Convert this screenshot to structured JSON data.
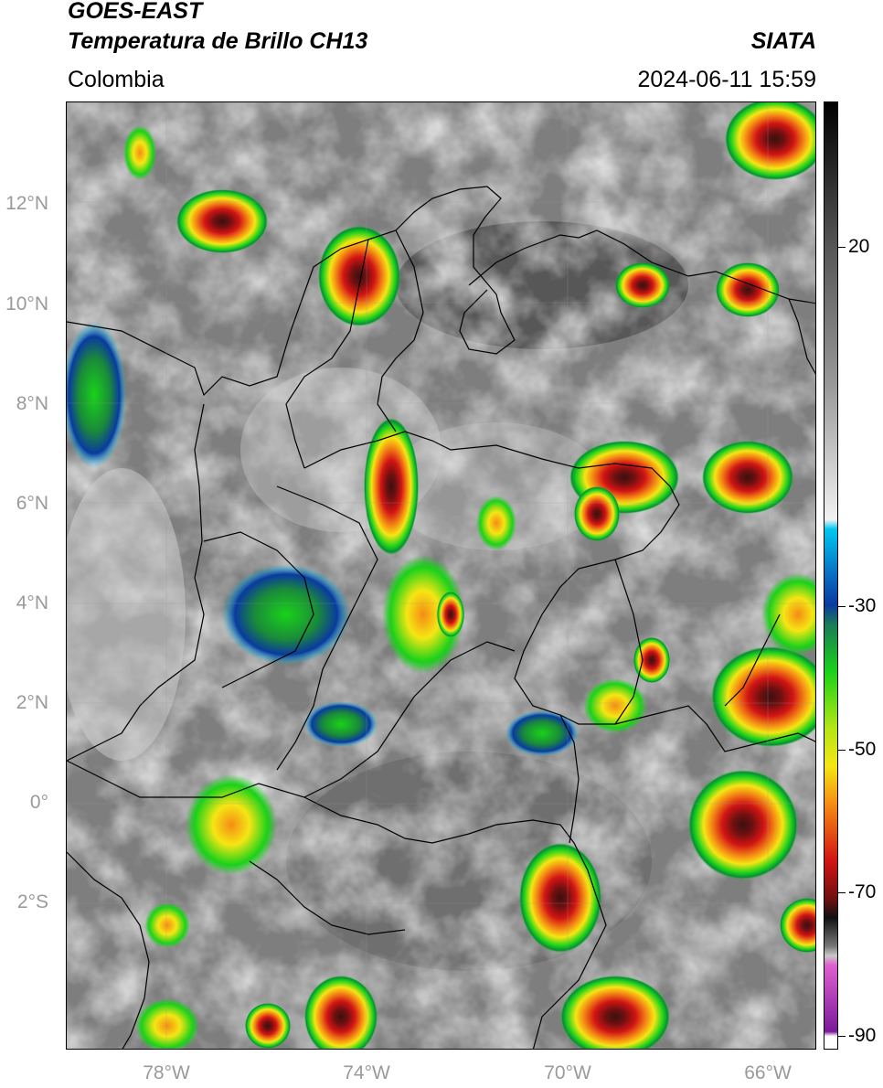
{
  "header": {
    "satellite": "GOES-EAST",
    "product": "Temperatura de Brillo CH13",
    "org": "SIATA",
    "region": "Colombia",
    "datetime": "2024-06-11 15:59"
  },
  "map": {
    "lat_labels": [
      "12°N",
      "10°N",
      "8°N",
      "6°N",
      "4°N",
      "2°N",
      "0°",
      "2°S"
    ],
    "lon_labels": [
      "78°W",
      "74°W",
      "70°W",
      "66°W"
    ],
    "background_color": "#7a7a7a",
    "border_color": "#000000"
  },
  "colorbar": {
    "tick_labels": [
      "20",
      "-30",
      "-50",
      "-70",
      "-90"
    ],
    "colors": {
      "white": "#ffffff",
      "gray_light": "#c8c8c8",
      "gray_dark": "#3a3a3a",
      "cyan": "#00c8f0",
      "blue": "#0a3aa0",
      "green": "#19d219",
      "yellow": "#f5e614",
      "orange": "#f58c14",
      "red": "#d21414",
      "darkred": "#501010",
      "magenta": "#e060d0",
      "purple": "#7a1a9a"
    }
  }
}
